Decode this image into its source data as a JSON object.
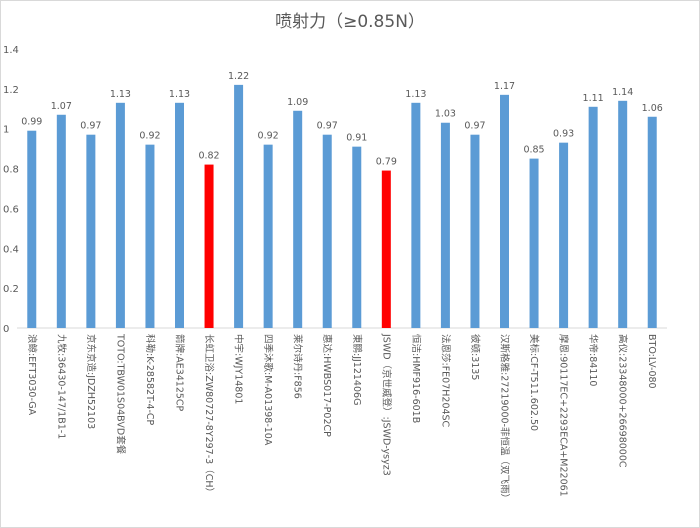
{
  "chart_data": {
    "type": "bar",
    "title": "喷射力（≥0.85N）",
    "xlabel": "",
    "ylabel": "",
    "ylim": [
      0,
      1.4
    ],
    "yticks": [
      "0",
      "0.2",
      "0.4",
      "0.6",
      "0.8",
      "1",
      "1.2",
      "1.4"
    ],
    "grid": false,
    "legend": "none",
    "categories": [
      "浪鲸:EFT3030-GA",
      "九牧:36430-147/1B1-1",
      "京东京造:JDZH52103",
      "TOTO:TBW01S04BVD套餐",
      "科勒:K-28582T-4-CP",
      "箭牌:AE34125CP",
      "长虹卫浴:ZW80727-8Y297-3（CH）",
      "中宇:WJY14801",
      "四季沐歌:M-A01398-10A",
      "莱尔诗丹:F856",
      "惠达:HWBS017-P02CP",
      "東鹏:JJ121406G",
      "JSWD（京世威登）:JSWD-ysyz3",
      "恒洁:HMF916-601B",
      "法恩莎:FE07H204SC",
      "彼顿:3135",
      "汉斯格雅:27219000-菲恒温（双飞雨）",
      "美标:CF-T511.602.50",
      "摩恩:90117EC+2293ECA+M22061",
      "华帝:84110",
      "高仪:23348000+26698000C",
      "BTO:LV-080"
    ],
    "values": [
      0.99,
      1.07,
      0.97,
      1.13,
      0.92,
      1.13,
      0.82,
      1.22,
      0.92,
      1.09,
      0.97,
      0.91,
      0.79,
      1.13,
      1.03,
      0.97,
      1.17,
      0.85,
      0.93,
      1.11,
      1.14,
      1.06
    ],
    "value_labels": [
      "0.99",
      "1.07",
      "0.97",
      "1.13",
      "0.92",
      "1.13",
      "0.82",
      "1.22",
      "0.92",
      "1.09",
      "0.97",
      "0.91",
      "0.79",
      "1.13",
      "1.03",
      "0.97",
      "1.17",
      "0.85",
      "0.93",
      "1.11",
      "1.14",
      "1.06"
    ],
    "highlighted_indices": [
      6,
      12
    ],
    "colors": {
      "bar": "#5b9bd5",
      "highlight": "#ff0000",
      "axis": "#d9d9d9",
      "text": "#595959"
    }
  }
}
